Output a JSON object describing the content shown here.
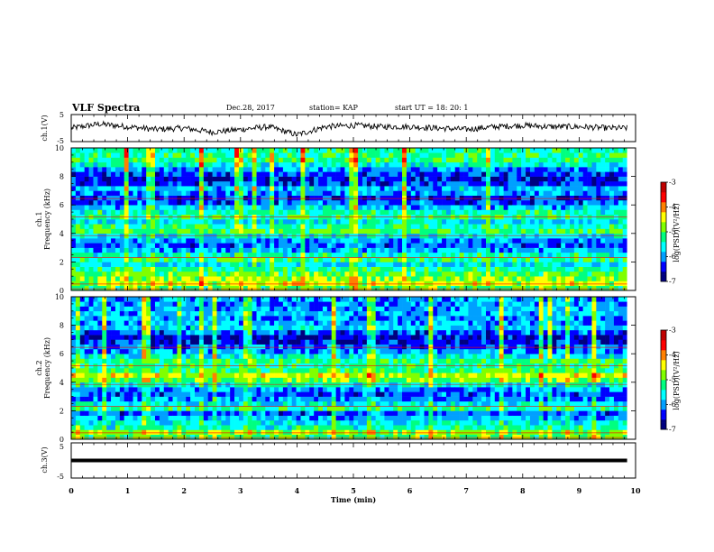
{
  "header": {
    "title": "VLF Spectra",
    "date": "Dec.28, 2017",
    "station": "station= KAP",
    "start": "start  UT  =   18: 20: 1"
  },
  "colors": {
    "colormap": [
      "#000080",
      "#0000ff",
      "#00a0ff",
      "#00ffff",
      "#00ff80",
      "#80ff00",
      "#ffff00",
      "#ff8000",
      "#ff0000",
      "#c00000"
    ],
    "trace": "#000000",
    "background": "#ffffff"
  },
  "chart_data": [
    {
      "type": "line",
      "panel": "ch1-waveform",
      "ylabel": "ch.1(V)",
      "ylim": [
        -5,
        5
      ],
      "yticklabels": [
        "5",
        "-5"
      ],
      "x": [
        0,
        0.5,
        1,
        1.5,
        2,
        2.5,
        3,
        3.5,
        4,
        4.5,
        5,
        5.5,
        6,
        6.5,
        7,
        7.5,
        8,
        8.5,
        9,
        9.5,
        9.85
      ],
      "y": [
        0,
        1.5,
        0.5,
        -0.5,
        0,
        -1.5,
        -0.5,
        0.5,
        -2.5,
        0.5,
        1,
        0.5,
        0.5,
        0,
        -0.5,
        0.5,
        1,
        0.5,
        0.5,
        0,
        0
      ]
    },
    {
      "type": "heatmap",
      "panel": "ch1-spectrogram",
      "ylabel": "ch.1\nFrequency (kHz)",
      "ylim": [
        0,
        10
      ],
      "yticklabels": [
        "0",
        "2",
        "4",
        "6",
        "8",
        "10"
      ],
      "zlabel": "log(PSD)(V²/Hz)",
      "zlim": [
        -7,
        -3
      ],
      "zticklabels": [
        "-3",
        "-4",
        "-5",
        "-6",
        "-7"
      ],
      "freq_profile": [
        -5.0,
        -4.6,
        -4.8,
        -5.0,
        -5.3,
        -5.7,
        -5.2,
        -5.4,
        -5.9,
        -6.2,
        -6.0,
        -5.6,
        -5.1,
        -5.3,
        -5.6,
        -5.2,
        -5.4,
        -5.8,
        -6.2,
        -6.4,
        -6.1,
        -5.8,
        -6.3,
        -6.5,
        -6.3,
        -6.0,
        -5.5,
        -5.2,
        -5.3,
        -5.3
      ]
    },
    {
      "type": "heatmap",
      "panel": "ch2-spectrogram",
      "ylabel": "ch.2\nFrequency (kHz)",
      "ylim": [
        0,
        10
      ],
      "yticklabels": [
        "0",
        "2",
        "4",
        "6",
        "8",
        "10"
      ],
      "zlabel": "log(PSD)(V²/Hz)",
      "zlim": [
        -7,
        -3
      ],
      "zticklabels": [
        "-3",
        "-4",
        "-5",
        "-6",
        "-7"
      ],
      "freq_profile": [
        -5.0,
        -4.8,
        -5.4,
        -5.6,
        -5.9,
        -6.2,
        -5.3,
        -5.6,
        -6.0,
        -6.2,
        -6.0,
        -5.5,
        -4.9,
        -4.6,
        -5.1,
        -5.3,
        -5.2,
        -5.6,
        -5.9,
        -6.2,
        -6.5,
        -6.6,
        -6.2,
        -5.8,
        -5.9,
        -6.0,
        -5.9,
        -5.9,
        -6.0,
        -6.0
      ]
    },
    {
      "type": "line",
      "panel": "ch3-waveform",
      "ylabel": "ch.3(V)",
      "ylim": [
        -5,
        5
      ],
      "yticklabels": [
        "5",
        "-5"
      ],
      "x": [
        0,
        9.85
      ],
      "y": [
        0,
        0
      ]
    }
  ],
  "xaxis": {
    "label": "Time (min)",
    "xlim": [
      0,
      10
    ],
    "ticklabels": [
      "0",
      "1",
      "2",
      "3",
      "4",
      "5",
      "6",
      "7",
      "8",
      "9",
      "10"
    ]
  }
}
